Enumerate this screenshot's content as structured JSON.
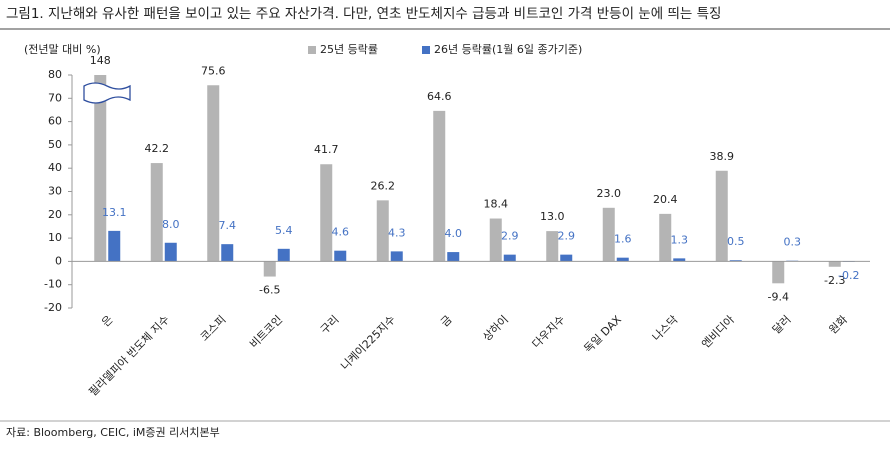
{
  "chart_data": {
    "type": "bar",
    "title": "그림1.   지난해와 유사한 패턴을 보이고 있는 주요 자산가격. 다만, 연초 반도체지수 급등과 비트코인 가격 반등이 눈에 띄는 특징",
    "y_axis_label": "(전년말 대비 %)",
    "source": "자료: Bloomberg, CEIC, iM증권 리서치본부",
    "categories": [
      "은",
      "필라델피아 반도체 지수",
      "코스피",
      "비트코인",
      "구리",
      "니케이225지수",
      "금",
      "상하이",
      "다우지수",
      "독일 DAX",
      "나스닥",
      "엔비디아",
      "달러",
      "원화"
    ],
    "series": [
      {
        "name": "25년 등락률",
        "color": "#b4b4b4",
        "values": [
          148,
          42.2,
          75.6,
          -6.5,
          41.7,
          26.2,
          64.6,
          18.4,
          13.0,
          23.0,
          20.4,
          38.9,
          -9.4,
          -2.3
        ],
        "value_labels": [
          "148",
          "42.2",
          "75.6",
          "-6.5",
          "41.7",
          "26.2",
          "64.6",
          "18.4",
          "13.0",
          "23.0",
          "20.4",
          "38.9",
          "-9.4",
          "-2.3"
        ]
      },
      {
        "name": "26년 등락률(1월 6일 종가기준)",
        "color": "#4472c4",
        "values": [
          13.1,
          8.0,
          7.4,
          5.4,
          4.6,
          4.3,
          4.0,
          2.9,
          2.9,
          1.6,
          1.3,
          0.5,
          0.3,
          -0.2
        ],
        "value_labels": [
          "13.1",
          "8.0",
          "7.4",
          "5.4",
          "4.6",
          "4.3",
          "4.0",
          "2.9",
          "2.9",
          "1.6",
          "1.3",
          "0.5",
          "0.3",
          "-0.2"
        ]
      }
    ],
    "ylim": [
      -20,
      80
    ],
    "yticks": [
      -20,
      -10,
      0,
      10,
      20,
      30,
      40,
      50,
      60,
      70,
      80
    ],
    "grid": false
  }
}
